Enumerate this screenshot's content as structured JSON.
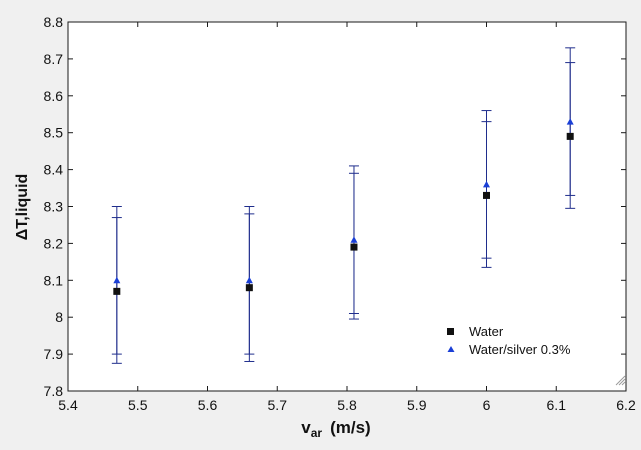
{
  "chart_data": {
    "type": "scatter",
    "title": "",
    "xlabel": "v",
    "xlabel_sub": "ar",
    "xlabel_unit": "(m/s)",
    "ylabel": "ΔT,liquid",
    "xlim": [
      5.4,
      6.2
    ],
    "ylim": [
      7.8,
      8.8
    ],
    "x_ticks": [
      "5.4",
      "5.5",
      "5.6",
      "5.7",
      "5.8",
      "5.9",
      "6",
      "6.1",
      "6.2"
    ],
    "y_ticks": [
      "7.8",
      "7.9",
      "8",
      "8.1",
      "8.2",
      "8.3",
      "8.4",
      "8.5",
      "8.6",
      "8.7",
      "8.8"
    ],
    "grid": false,
    "legend_position": "bottom-right",
    "error_bar_color": "#1f2d8c",
    "series": [
      {
        "name": "Water",
        "marker": "square",
        "color": "#111111",
        "points": [
          {
            "x": 5.47,
            "y": 8.07,
            "lo": 7.9,
            "hi": 8.27
          },
          {
            "x": 5.66,
            "y": 8.08,
            "lo": 7.9,
            "hi": 8.28
          },
          {
            "x": 5.81,
            "y": 8.19,
            "lo": 8.01,
            "hi": 8.39
          },
          {
            "x": 6.0,
            "y": 8.33,
            "lo": 8.16,
            "hi": 8.53
          },
          {
            "x": 6.12,
            "y": 8.49,
            "lo": 8.33,
            "hi": 8.69
          }
        ]
      },
      {
        "name": "Water/silver 0.3%",
        "marker": "triangle",
        "color": "#1a3fd6",
        "points": [
          {
            "x": 5.47,
            "y": 8.1,
            "lo": 7.875,
            "hi": 8.3
          },
          {
            "x": 5.66,
            "y": 8.1,
            "lo": 7.88,
            "hi": 8.3
          },
          {
            "x": 5.81,
            "y": 8.21,
            "lo": 7.995,
            "hi": 8.41
          },
          {
            "x": 6.0,
            "y": 8.36,
            "lo": 8.135,
            "hi": 8.56
          },
          {
            "x": 6.12,
            "y": 8.53,
            "lo": 8.295,
            "hi": 8.73
          }
        ]
      }
    ]
  }
}
